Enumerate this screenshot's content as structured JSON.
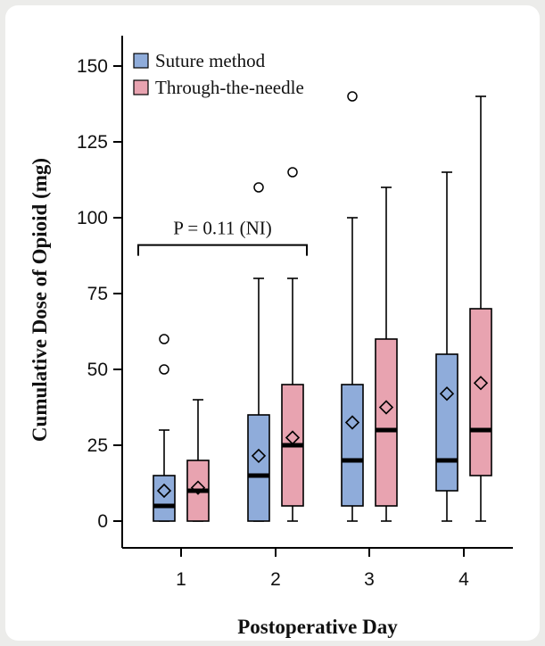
{
  "chart_data": {
    "type": "box",
    "xlabel": "Postoperative Day",
    "ylabel": "Cumulative Dose of Opioid (mg)",
    "ylim": [
      -10,
      160
    ],
    "yticks": [
      0,
      25,
      50,
      75,
      100,
      125,
      150
    ],
    "categories": [
      "1",
      "2",
      "3",
      "4"
    ],
    "series": [
      {
        "name": "Suture method",
        "color": "#8facda",
        "boxes": [
          {
            "min": 0,
            "q1": 0,
            "median": 5,
            "q3": 15,
            "max": 30,
            "mean": 10,
            "outliers": [
              50,
              60
            ]
          },
          {
            "min": 0,
            "q1": 0,
            "median": 15,
            "q3": 35,
            "max": 80,
            "mean": 21.5,
            "outliers": [
              110
            ]
          },
          {
            "min": 0,
            "q1": 5,
            "median": 20,
            "q3": 45,
            "max": 100,
            "mean": 32.5,
            "outliers": [
              140
            ]
          },
          {
            "min": 0,
            "q1": 10,
            "median": 20,
            "q3": 55,
            "max": 115,
            "mean": 42,
            "outliers": []
          }
        ]
      },
      {
        "name": "Through-the-needle",
        "color": "#e8a3b0",
        "boxes": [
          {
            "min": 0,
            "q1": 0,
            "median": 10,
            "q3": 20,
            "max": 40,
            "mean": 11,
            "outliers": []
          },
          {
            "min": 0,
            "q1": 5,
            "median": 25,
            "q3": 45,
            "max": 80,
            "mean": 27.5,
            "outliers": [
              115
            ]
          },
          {
            "min": 0,
            "q1": 5,
            "median": 30,
            "q3": 60,
            "max": 110,
            "mean": 37.5,
            "outliers": []
          },
          {
            "min": 0,
            "q1": 15,
            "median": 30,
            "q3": 70,
            "max": 140,
            "mean": 45.5,
            "outliers": []
          }
        ]
      }
    ],
    "annotation": {
      "text": "P = 0.11 (NI)",
      "value": 91,
      "from_category": "1",
      "to_category": "2"
    },
    "legend": "top-left",
    "grid": false
  }
}
